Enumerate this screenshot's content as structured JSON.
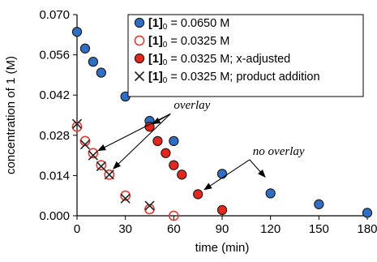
{
  "chart_data": {
    "type": "scatter",
    "xlabel": "time (min)",
    "ylabel": "concentration of 1  (M)",
    "xlim": [
      0,
      180
    ],
    "ylim": [
      0,
      0.07
    ],
    "x_ticks": [
      0,
      30,
      60,
      90,
      120,
      150,
      180
    ],
    "y_ticks": [
      0.0,
      0.014,
      0.028,
      0.042,
      0.056,
      0.07
    ],
    "x_tick_labels": [
      "0",
      "30",
      "60",
      "90",
      "120",
      "150",
      "180"
    ],
    "y_tick_labels": [
      "0.000",
      "0.014",
      "0.028",
      "0.042",
      "0.056",
      "0.070"
    ],
    "grid": false,
    "legend_position": "top-right",
    "series": [
      {
        "name_prefix": "[1]",
        "name_sub": "0",
        "name_suffix": " = 0.0650 M",
        "marker": "filled-circle",
        "fill": "#2e6fc4",
        "stroke": "#1a1a1a",
        "points": [
          [
            0,
            0.064
          ],
          [
            5,
            0.0582
          ],
          [
            10,
            0.0536
          ],
          [
            15,
            0.0498
          ],
          [
            30,
            0.0415
          ],
          [
            45,
            0.033
          ],
          [
            60,
            0.026
          ],
          [
            90,
            0.0146
          ],
          [
            120,
            0.0078
          ],
          [
            150,
            0.004
          ],
          [
            180,
            0.001
          ]
        ]
      },
      {
        "name_prefix": "[1]",
        "name_sub": "0",
        "name_suffix": " = 0.0325 M",
        "marker": "open-circle",
        "fill": "none",
        "stroke": "#e53b33",
        "points": [
          [
            0,
            0.031
          ],
          [
            5,
            0.026
          ],
          [
            10,
            0.0218
          ],
          [
            15,
            0.0176
          ],
          [
            20,
            0.0143
          ],
          [
            30,
            0.007
          ],
          [
            45,
            0.0023
          ],
          [
            60,
            0.0
          ]
        ]
      },
      {
        "name_prefix": "[1]",
        "name_sub": "0",
        "name_suffix": " = 0.0325 M; x-adjusted",
        "marker": "filled-circle",
        "fill": "#e3261e",
        "stroke": "#1a1a1a",
        "points": [
          [
            45,
            0.031
          ],
          [
            50,
            0.026
          ],
          [
            55,
            0.0218
          ],
          [
            60,
            0.0176
          ],
          [
            65,
            0.0143
          ],
          [
            75,
            0.0075
          ],
          [
            90,
            0.002
          ]
        ]
      },
      {
        "name_prefix": "[1]",
        "name_sub": "0",
        "name_suffix": " = 0.0325 M; product addition",
        "marker": "x",
        "fill": "none",
        "stroke": "#222222",
        "points": [
          [
            0,
            0.032
          ],
          [
            5,
            0.0248
          ],
          [
            10,
            0.021
          ],
          [
            15,
            0.0172
          ],
          [
            20,
            0.0143
          ],
          [
            30,
            0.006
          ],
          [
            45,
            0.0035
          ]
        ]
      }
    ],
    "annotations": [
      {
        "text": "overlay",
        "anchor": [
          58,
          0.0355
        ],
        "arrows_to": [
          [
            10,
            0.0218
          ],
          [
            20,
            0.015
          ],
          [
            44,
            0.031
          ]
        ]
      },
      {
        "text": "no overlay",
        "anchor": [
          107,
          0.0195
        ],
        "arrows_to": [
          [
            76,
            0.008
          ],
          [
            119,
            0.012
          ]
        ]
      }
    ]
  }
}
